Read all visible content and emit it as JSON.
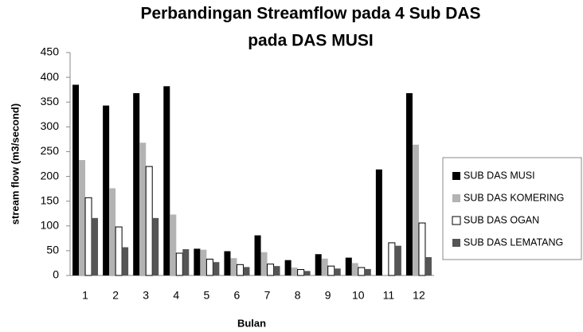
{
  "chart_data": {
    "type": "bar",
    "title": [
      "Perbandingan Streamflow pada 4 Sub DAS",
      "pada DAS MUSI"
    ],
    "x_label": "Bulan",
    "y_label": "stream flow (m3/second)",
    "categories": [
      "1",
      "2",
      "3",
      "4",
      "5",
      "6",
      "7",
      "8",
      "9",
      "10",
      "11",
      "12"
    ],
    "series": [
      {
        "name": "SUB DAS MUSI",
        "color": "#000000",
        "values": [
          385,
          343,
          368,
          382,
          54,
          49,
          81,
          31,
          43,
          36,
          214,
          368
        ]
      },
      {
        "name": "SUB DAS KOMERING",
        "color": "#b3b3b3",
        "values": [
          233,
          176,
          268,
          123,
          52,
          35,
          47,
          16,
          34,
          25,
          null,
          264
        ]
      },
      {
        "name": "SUB DAS OGAN",
        "color": "#ffffff",
        "values": [
          157,
          98,
          220,
          45,
          33,
          22,
          23,
          12,
          19,
          16,
          66,
          106
        ]
      },
      {
        "name": "SUB DAS LEMATANG",
        "color": "#555555",
        "values": [
          116,
          57,
          116,
          53,
          27,
          17,
          19,
          9,
          14,
          13,
          60,
          37
        ]
      }
    ],
    "ylim": [
      0,
      450
    ],
    "yticks": [
      0,
      50,
      100,
      150,
      200,
      250,
      300,
      350,
      400,
      450
    ],
    "grid": false,
    "legend": "right"
  }
}
